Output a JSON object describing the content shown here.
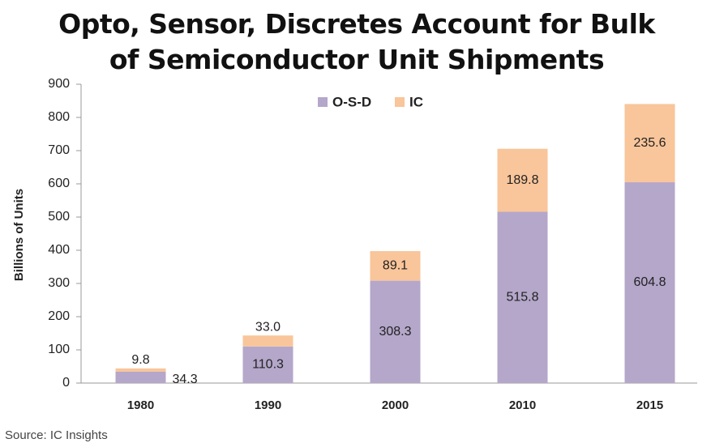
{
  "chart_data": {
    "type": "stacked_bar",
    "title": "Opto, Sensor, Discretes Account for Bulk of Semiconductor Unit Shipments",
    "y_label": "Billions of Units",
    "source": "Source:  IC Insights",
    "categories": [
      "1980",
      "1990",
      "2000",
      "2010",
      "2015"
    ],
    "series": [
      {
        "name": "O-S-D",
        "color": "#b4a7ca",
        "values": [
          34.3,
          110.3,
          308.3,
          515.8,
          604.8
        ]
      },
      {
        "name": "IC",
        "color": "#f9c59a",
        "values": [
          9.8,
          33.0,
          89.1,
          189.8,
          235.6
        ],
        "value_labels": [
          "9.8",
          "33.0",
          "89.1",
          "189.8",
          "235.6"
        ]
      }
    ],
    "ylim": [
      0,
      900
    ],
    "yticks": [
      0,
      100,
      200,
      300,
      400,
      500,
      600,
      700,
      800,
      900
    ],
    "legend": "top"
  }
}
